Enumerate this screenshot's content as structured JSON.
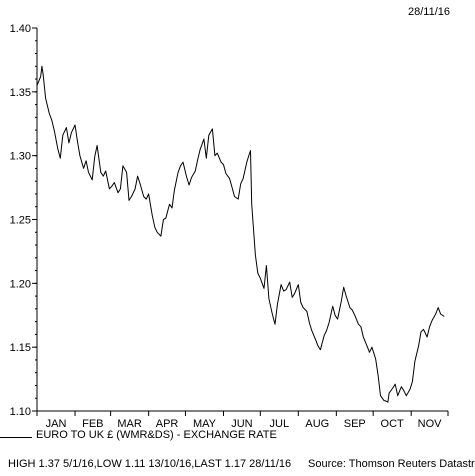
{
  "header": {
    "date_stamp": "28/11/16"
  },
  "legend": {
    "series_label": "EURO TO UK £ (WMR&DS) - EXCHANGE RATE"
  },
  "footer": {
    "stats": "HIGH 1.37 5/1/16,LOW 1.11 13/10/16,LAST 1.17 28/11/16",
    "source": "Source: Thomson Reuters Datastream"
  },
  "chart_data": {
    "type": "line",
    "title": "",
    "xlabel": "",
    "ylabel": "",
    "ylim": [
      1.1,
      1.4
    ],
    "y_ticks": [
      1.1,
      1.15,
      1.2,
      1.25,
      1.3,
      1.35,
      1.4
    ],
    "y_tick_labels": [
      "1.10",
      "1.15",
      "1.20",
      "1.25",
      "1.30",
      "1.35",
      "1.40"
    ],
    "x_ticks": [
      "JAN",
      "FEB",
      "MAR",
      "APR",
      "MAY",
      "JUN",
      "JUL",
      "AUG",
      "SEP",
      "OCT",
      "NOV"
    ],
    "grid": false,
    "series": [
      {
        "name": "EURO TO UK £ (WMR&DS) - EXCHANGE RATE",
        "x": [
          "2016-01-01",
          "2016-01-04",
          "2016-01-05",
          "2016-01-06",
          "2016-01-08",
          "2016-01-11",
          "2016-01-13",
          "2016-01-15",
          "2016-01-18",
          "2016-01-20",
          "2016-01-22",
          "2016-01-25",
          "2016-01-27",
          "2016-01-29",
          "2016-02-01",
          "2016-02-03",
          "2016-02-05",
          "2016-02-08",
          "2016-02-10",
          "2016-02-12",
          "2016-02-15",
          "2016-02-17",
          "2016-02-19",
          "2016-02-22",
          "2016-02-24",
          "2016-02-26",
          "2016-02-29",
          "2016-03-02",
          "2016-03-04",
          "2016-03-07",
          "2016-03-09",
          "2016-03-11",
          "2016-03-14",
          "2016-03-16",
          "2016-03-18",
          "2016-03-21",
          "2016-03-23",
          "2016-03-25",
          "2016-03-28",
          "2016-03-30",
          "2016-04-01",
          "2016-04-04",
          "2016-04-06",
          "2016-04-08",
          "2016-04-11",
          "2016-04-13",
          "2016-04-15",
          "2016-04-18",
          "2016-04-20",
          "2016-04-22",
          "2016-04-25",
          "2016-04-27",
          "2016-04-29",
          "2016-05-02",
          "2016-05-04",
          "2016-05-06",
          "2016-05-09",
          "2016-05-11",
          "2016-05-13",
          "2016-05-16",
          "2016-05-18",
          "2016-05-20",
          "2016-05-23",
          "2016-05-25",
          "2016-05-27",
          "2016-05-30",
          "2016-06-01",
          "2016-06-03",
          "2016-06-06",
          "2016-06-08",
          "2016-06-10",
          "2016-06-13",
          "2016-06-15",
          "2016-06-17",
          "2016-06-20",
          "2016-06-22",
          "2016-06-23",
          "2016-06-24",
          "2016-06-27",
          "2016-06-29",
          "2016-07-01",
          "2016-07-04",
          "2016-07-06",
          "2016-07-08",
          "2016-07-11",
          "2016-07-13",
          "2016-07-15",
          "2016-07-18",
          "2016-07-20",
          "2016-07-22",
          "2016-07-25",
          "2016-07-27",
          "2016-07-29",
          "2016-08-01",
          "2016-08-03",
          "2016-08-05",
          "2016-08-08",
          "2016-08-10",
          "2016-08-12",
          "2016-08-15",
          "2016-08-17",
          "2016-08-19",
          "2016-08-22",
          "2016-08-24",
          "2016-08-26",
          "2016-08-29",
          "2016-08-31",
          "2016-09-02",
          "2016-09-05",
          "2016-09-07",
          "2016-09-09",
          "2016-09-12",
          "2016-09-14",
          "2016-09-16",
          "2016-09-19",
          "2016-09-21",
          "2016-09-23",
          "2016-09-26",
          "2016-09-28",
          "2016-09-30",
          "2016-10-03",
          "2016-10-05",
          "2016-10-07",
          "2016-10-10",
          "2016-10-11",
          "2016-10-13",
          "2016-10-14",
          "2016-10-17",
          "2016-10-19",
          "2016-10-21",
          "2016-10-24",
          "2016-10-26",
          "2016-10-28",
          "2016-10-31",
          "2016-11-02",
          "2016-11-04",
          "2016-11-07",
          "2016-11-09",
          "2016-11-11",
          "2016-11-14",
          "2016-11-16",
          "2016-11-18",
          "2016-11-21",
          "2016-11-23",
          "2016-11-25",
          "2016-11-28"
        ],
        "values": [
          1.355,
          1.362,
          1.37,
          1.364,
          1.345,
          1.333,
          1.328,
          1.32,
          1.305,
          1.298,
          1.316,
          1.322,
          1.31,
          1.318,
          1.324,
          1.311,
          1.3,
          1.29,
          1.296,
          1.287,
          1.281,
          1.299,
          1.308,
          1.287,
          1.284,
          1.288,
          1.274,
          1.276,
          1.279,
          1.271,
          1.274,
          1.292,
          1.287,
          1.265,
          1.268,
          1.274,
          1.284,
          1.278,
          1.268,
          1.266,
          1.27,
          1.253,
          1.244,
          1.24,
          1.237,
          1.25,
          1.251,
          1.262,
          1.259,
          1.273,
          1.287,
          1.292,
          1.295,
          1.283,
          1.277,
          1.283,
          1.288,
          1.297,
          1.305,
          1.313,
          1.298,
          1.316,
          1.321,
          1.3,
          1.302,
          1.295,
          1.293,
          1.286,
          1.282,
          1.275,
          1.268,
          1.266,
          1.278,
          1.282,
          1.295,
          1.301,
          1.304,
          1.262,
          1.222,
          1.208,
          1.204,
          1.196,
          1.214,
          1.188,
          1.175,
          1.168,
          1.184,
          1.199,
          1.194,
          1.195,
          1.201,
          1.189,
          1.192,
          1.199,
          1.185,
          1.181,
          1.178,
          1.169,
          1.163,
          1.156,
          1.151,
          1.148,
          1.159,
          1.163,
          1.169,
          1.182,
          1.175,
          1.172,
          1.186,
          1.197,
          1.19,
          1.181,
          1.179,
          1.175,
          1.168,
          1.166,
          1.158,
          1.151,
          1.146,
          1.15,
          1.141,
          1.128,
          1.112,
          1.108,
          1.108,
          1.107,
          1.114,
          1.118,
          1.121,
          1.112,
          1.119,
          1.116,
          1.112,
          1.117,
          1.123,
          1.139,
          1.151,
          1.162,
          1.164,
          1.158,
          1.166,
          1.171,
          1.176,
          1.181,
          1.176,
          1.174
        ]
      }
    ]
  }
}
